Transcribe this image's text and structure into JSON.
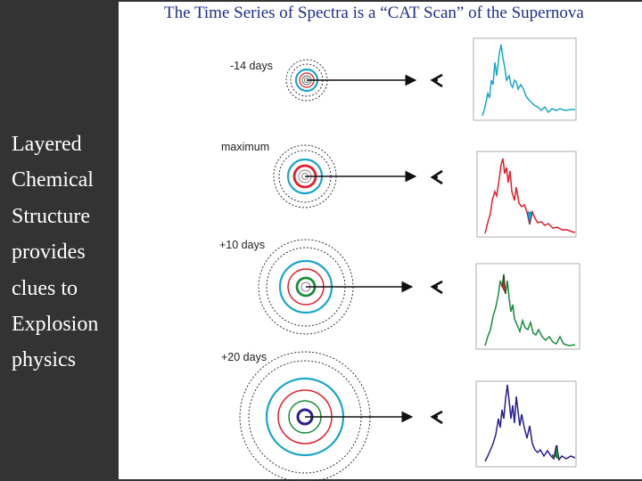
{
  "slide": {
    "title": "The Time Series of Spectra is a “CAT Scan” of the Supernova",
    "left_lines": [
      "Layered",
      "Chemical",
      "Structure",
      "provides",
      "clues to",
      "Explosion",
      "physics"
    ]
  },
  "rows": [
    {
      "label": "-14 days",
      "color": "#1aa6c8"
    },
    {
      "label": "maximum",
      "color": "#e0202c"
    },
    {
      "label": "+10 days",
      "color": "#1a8c3a"
    },
    {
      "label": "+20 days",
      "color": "#2a1f8c"
    }
  ],
  "colors": {
    "cyan": "#1aa6c8",
    "red": "#e0202c",
    "green": "#1a8c3a",
    "purple": "#2a1f8c",
    "text_white": "#ffffff",
    "title_blue": "#1f2f88",
    "background": "#333333"
  },
  "icons": {
    "observer": "eye-arrow-icon"
  }
}
